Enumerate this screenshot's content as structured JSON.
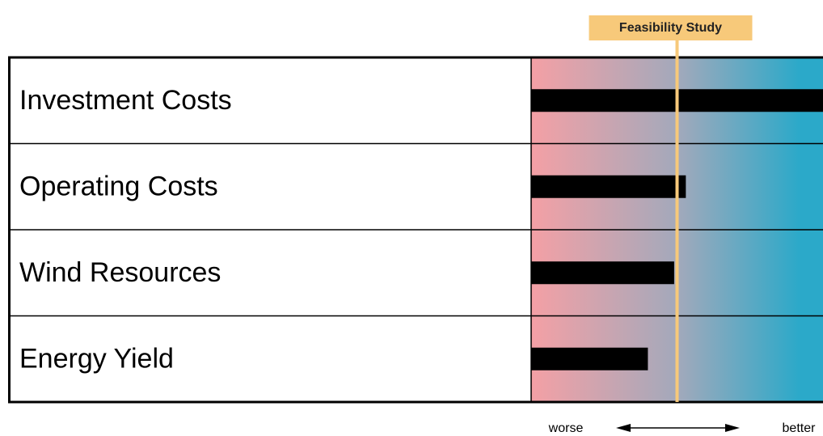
{
  "chart_data": {
    "type": "bar",
    "categories": [
      "Investment Costs",
      "Operating Costs",
      "Wind Resources",
      "Energy Yield"
    ],
    "values": [
      100,
      53,
      49,
      40
    ],
    "color": "#000000",
    "xlim": [
      0,
      100
    ],
    "gradient": [
      "#f4a0a5",
      "#2ba9c9"
    ],
    "reference": {
      "label": "Feasibility Study",
      "value": 50,
      "color": "#f7c97a"
    },
    "annotations": [
      "worse",
      "better"
    ]
  }
}
